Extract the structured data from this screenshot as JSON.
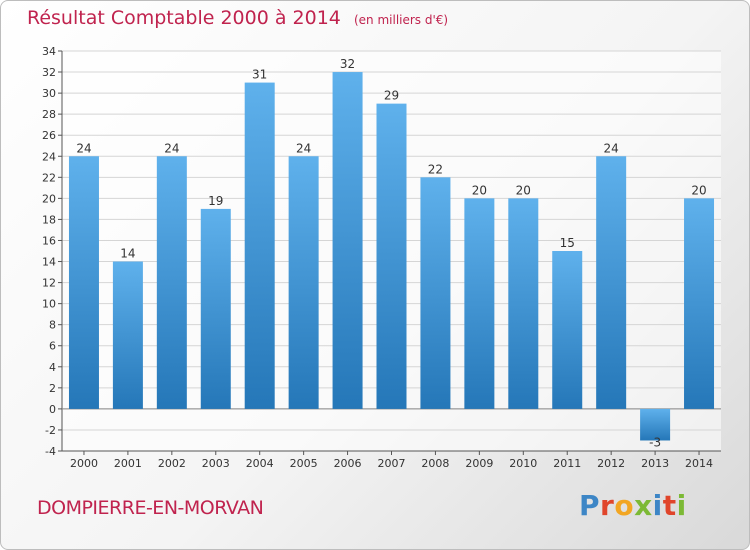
{
  "title": "Résultat Comptable 2000 à 2014",
  "subtitle": "(en milliers d'€)",
  "commune": "DOMPIERRE-EN-MORVAN",
  "logo": {
    "p": "P",
    "r": "r",
    "o": "o",
    "x": "x",
    "i1": "i",
    "t": "t",
    "i2": "i"
  },
  "colors": {
    "title": "#c0234e",
    "bar_top": "#5fb1ec",
    "bar_bottom": "#2577b8",
    "grid": "#d5d5d5"
  },
  "chart_data": {
    "type": "bar",
    "categories": [
      "2000",
      "2001",
      "2002",
      "2003",
      "2004",
      "2005",
      "2006",
      "2007",
      "2008",
      "2009",
      "2010",
      "2011",
      "2012",
      "2013",
      "2014"
    ],
    "values": [
      24,
      14,
      24,
      19,
      31,
      24,
      32,
      29,
      22,
      20,
      20,
      15,
      24,
      -3,
      20
    ],
    "ylim": [
      -4,
      34
    ],
    "yticks": [
      -4,
      -2,
      0,
      2,
      4,
      6,
      8,
      10,
      12,
      14,
      16,
      18,
      20,
      22,
      24,
      26,
      28,
      30,
      32,
      34
    ],
    "grid": true
  }
}
